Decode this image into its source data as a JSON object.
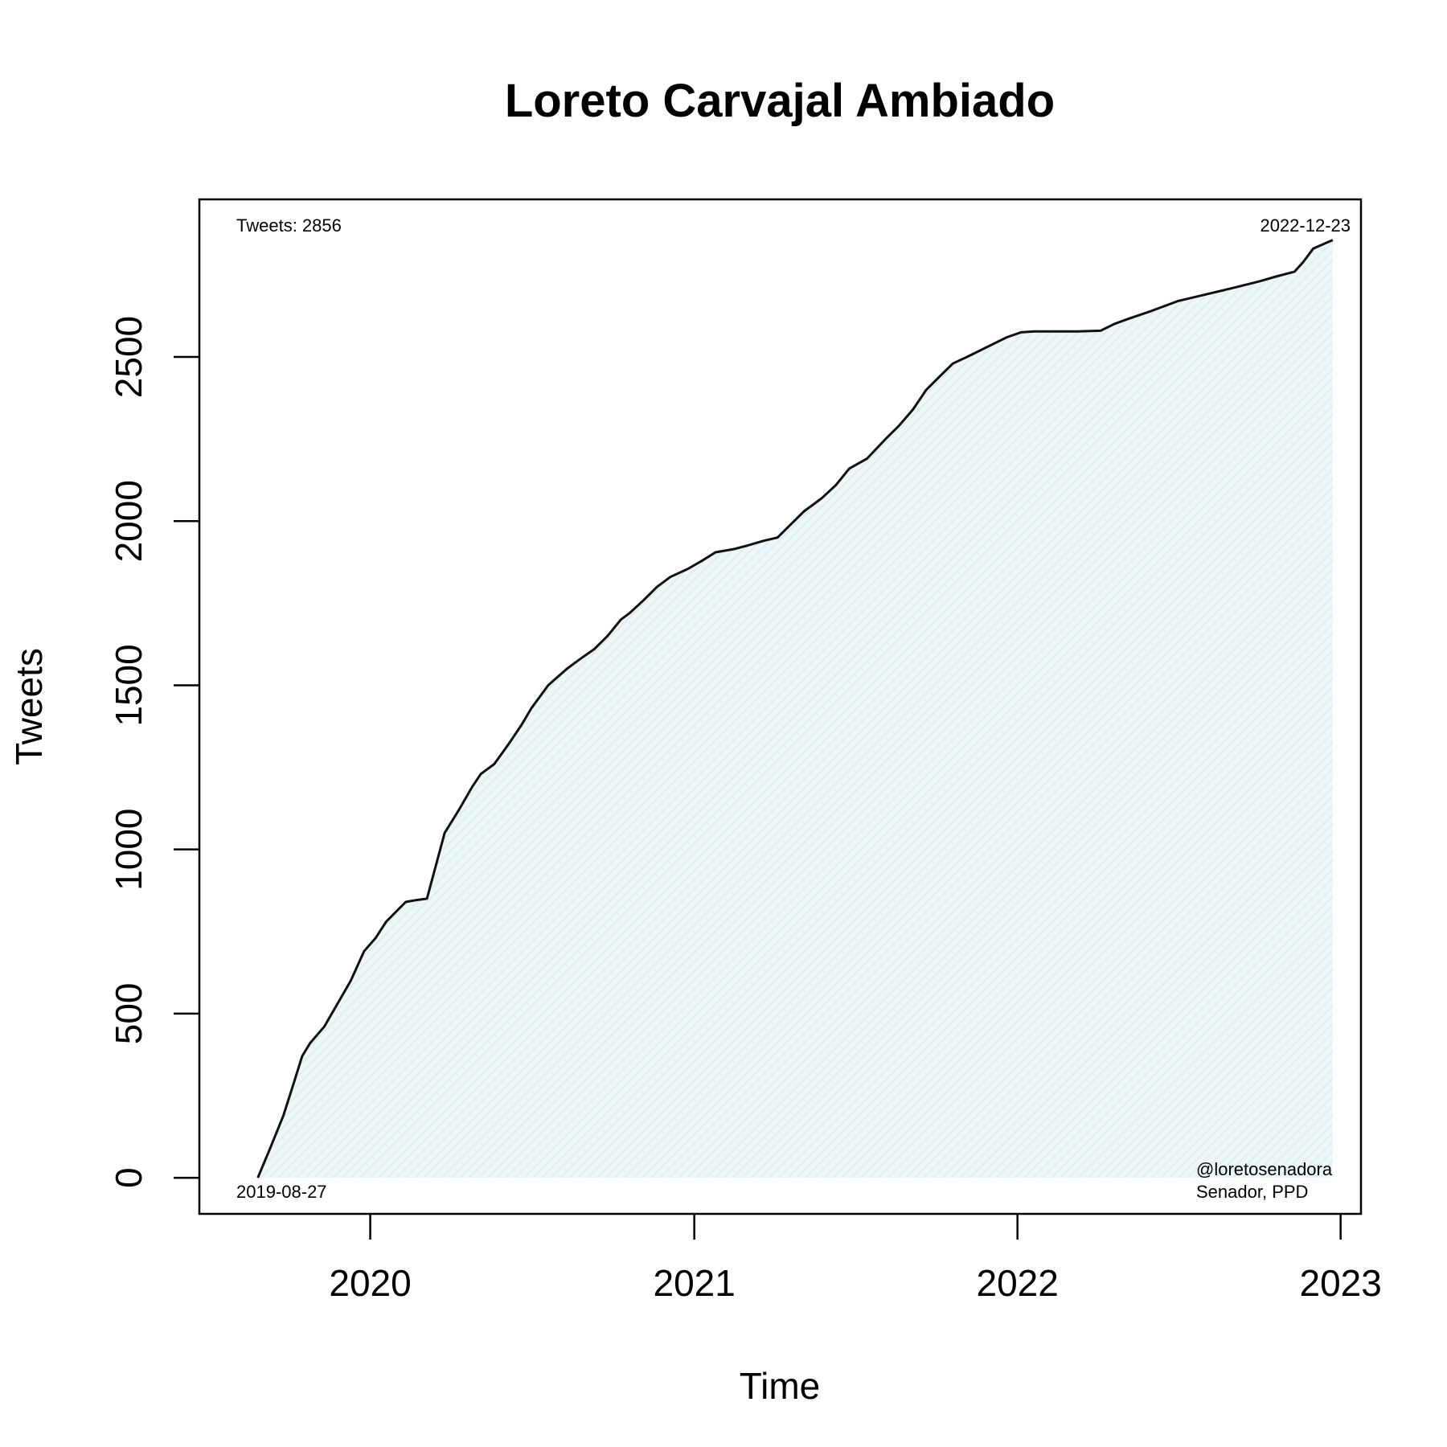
{
  "chart_data": {
    "type": "area",
    "title": "Loreto Carvajal Ambiado",
    "xlabel": "Time",
    "ylabel": "Tweets",
    "xlim": [
      "2019-06-22",
      "2023-01-24"
    ],
    "ylim": [
      -110,
      2980
    ],
    "x_ticks": [
      "2020-01-01",
      "2021-01-01",
      "2022-01-01",
      "2023-01-01"
    ],
    "x_tick_labels": [
      "2020",
      "2021",
      "2022",
      "2023"
    ],
    "y_ticks": [
      0,
      500,
      1000,
      1500,
      2000,
      2500
    ],
    "y_tick_labels": [
      "0",
      "500",
      "1000",
      "1500",
      "2000",
      "2500"
    ],
    "grid": false,
    "fill_color": "#e6f3f5",
    "line_color": "#111111",
    "annotations": {
      "top_left": "Tweets: 2856",
      "top_right": "2022-12-23",
      "bottom_left": "2019-08-27",
      "bottom_right_1": "@loretosenadora",
      "bottom_right_2": "Senador, PPD"
    },
    "series": [
      {
        "x": [
          "2019-08-27",
          "2019-09-10",
          "2019-09-25",
          "2019-10-08",
          "2019-10-16",
          "2019-10-25",
          "2019-11-10",
          "2019-11-25",
          "2019-12-10",
          "2019-12-25",
          "2020-01-07",
          "2020-01-19",
          "2020-02-10",
          "2020-02-20",
          "2020-03-05",
          "2020-03-15",
          "2020-03-25",
          "2020-04-10",
          "2020-04-25",
          "2020-05-05",
          "2020-05-20",
          "2020-06-05",
          "2020-06-20",
          "2020-07-01",
          "2020-07-20",
          "2020-08-10",
          "2020-08-25",
          "2020-09-10",
          "2020-09-25",
          "2020-10-10",
          "2020-10-20",
          "2020-11-05",
          "2020-11-20",
          "2020-12-05",
          "2020-12-25",
          "2021-01-10",
          "2021-01-25",
          "2021-02-15",
          "2021-03-01",
          "2021-03-20",
          "2021-04-05",
          "2021-04-20",
          "2021-05-05",
          "2021-05-25",
          "2021-06-10",
          "2021-06-25",
          "2021-07-15",
          "2021-08-05",
          "2021-08-20",
          "2021-09-05",
          "2021-09-20",
          "2021-10-05",
          "2021-10-20",
          "2021-11-05",
          "2021-11-20",
          "2021-12-05",
          "2021-12-20",
          "2022-01-05",
          "2022-01-20",
          "2022-02-10",
          "2022-03-10",
          "2022-04-05",
          "2022-04-20",
          "2022-05-05",
          "2022-06-01",
          "2022-07-01",
          "2022-08-01",
          "2022-09-01",
          "2022-10-01",
          "2022-10-20",
          "2022-11-10",
          "2022-11-20",
          "2022-12-01",
          "2022-12-23"
        ],
        "values": [
          0,
          90,
          190,
          300,
          370,
          410,
          460,
          530,
          600,
          690,
          730,
          780,
          840,
          845,
          850,
          950,
          1050,
          1120,
          1190,
          1230,
          1260,
          1320,
          1380,
          1430,
          1500,
          1550,
          1580,
          1610,
          1650,
          1700,
          1720,
          1760,
          1800,
          1830,
          1855,
          1880,
          1905,
          1915,
          1925,
          1940,
          1950,
          1990,
          2030,
          2070,
          2110,
          2160,
          2190,
          2250,
          2290,
          2340,
          2400,
          2440,
          2480,
          2500,
          2520,
          2540,
          2560,
          2575,
          2578,
          2578,
          2578,
          2580,
          2600,
          2615,
          2640,
          2670,
          2690,
          2710,
          2730,
          2745,
          2760,
          2790,
          2830,
          2856
        ]
      }
    ]
  }
}
